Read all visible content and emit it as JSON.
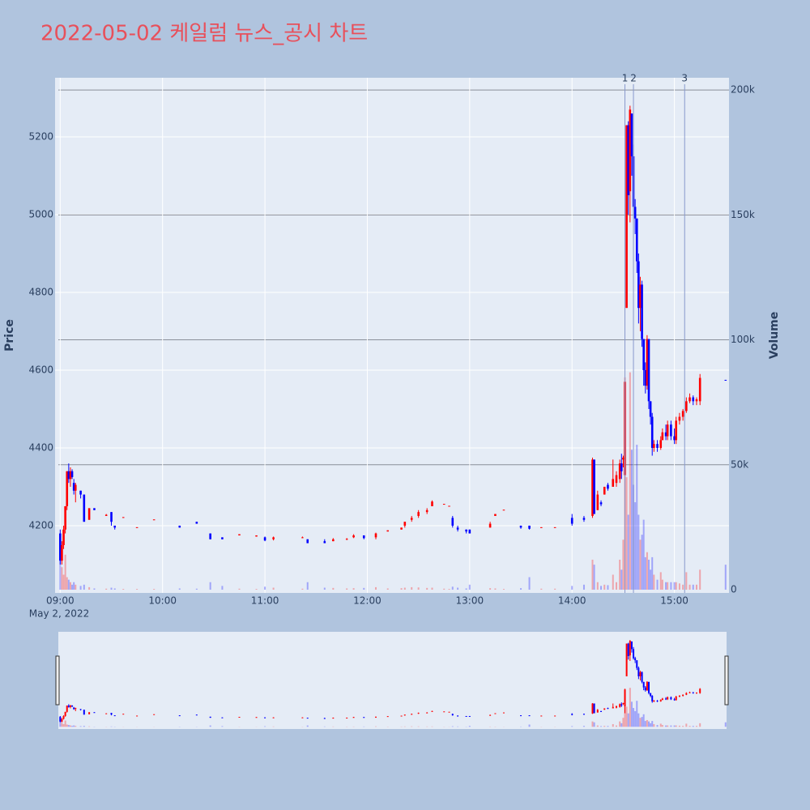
{
  "chart_data": {
    "type": "candlestick",
    "title": "2022-05-02 케일럼 뉴스_공시 차트",
    "y_title": "Price",
    "y2_title": "Volume",
    "x_date_label": "May 2, 2022",
    "increasing_color": "#ff0000",
    "decreasing_color": "#0000ff",
    "increasing_volume_color": "rgba(255,0,0,0.3)",
    "decreasing_volume_color": "rgba(0,0,255,0.3)",
    "xlim": [
      "2022-05-02 08:57",
      "2022-05-02 15:32"
    ],
    "xticks": [
      {
        "value": "2022-05-02 09:00",
        "label": "09:00"
      },
      {
        "value": "2022-05-02 10:00",
        "label": "10:00"
      },
      {
        "value": "2022-05-02 11:00",
        "label": "11:00"
      },
      {
        "value": "2022-05-02 12:00",
        "label": "12:00"
      },
      {
        "value": "2022-05-02 13:00",
        "label": "13:00"
      },
      {
        "value": "2022-05-02 14:00",
        "label": "14:00"
      },
      {
        "value": "2022-05-02 15:00",
        "label": "15:00"
      }
    ],
    "ylim": [
      4027,
      5352
    ],
    "yticks": [
      4200,
      4400,
      4600,
      4800,
      5000,
      5200
    ],
    "y2lim": [
      -1300,
      204900
    ],
    "y2ticks": [
      0,
      {
        "value": 50000,
        "label": "50k"
      },
      {
        "value": 100000,
        "label": "100k"
      },
      {
        "value": 150000,
        "label": "150k"
      },
      {
        "value": 200000,
        "label": "200k"
      }
    ],
    "annotations": [
      {
        "x": "2022-05-02 14:31",
        "label": "1"
      },
      {
        "x": "2022-05-02 14:36",
        "label": "2"
      },
      {
        "x": "2022-05-02 15:06",
        "label": "3"
      }
    ],
    "x": [
      "2022-05-02 09:00",
      "2022-05-02 09:01",
      "2022-05-02 09:02",
      "2022-05-02 09:03",
      "2022-05-02 09:04",
      "2022-05-02 09:05",
      "2022-05-02 09:06",
      "2022-05-02 09:07",
      "2022-05-02 09:08",
      "2022-05-02 09:09",
      "2022-05-02 09:12",
      "2022-05-02 09:14",
      "2022-05-02 09:17",
      "2022-05-02 09:20",
      "2022-05-02 09:27",
      "2022-05-02 09:30",
      "2022-05-02 09:32",
      "2022-05-02 09:37",
      "2022-05-02 09:45",
      "2022-05-02 09:55",
      "2022-05-02 10:10",
      "2022-05-02 10:20",
      "2022-05-02 10:28",
      "2022-05-02 10:35",
      "2022-05-02 10:45",
      "2022-05-02 10:55",
      "2022-05-02 11:00",
      "2022-05-02 11:05",
      "2022-05-02 11:22",
      "2022-05-02 11:25",
      "2022-05-02 11:35",
      "2022-05-02 11:40",
      "2022-05-02 11:48",
      "2022-05-02 11:52",
      "2022-05-02 11:58",
      "2022-05-02 12:05",
      "2022-05-02 12:12",
      "2022-05-02 12:20",
      "2022-05-02 12:22",
      "2022-05-02 12:26",
      "2022-05-02 12:30",
      "2022-05-02 12:35",
      "2022-05-02 12:38",
      "2022-05-02 12:45",
      "2022-05-02 12:48",
      "2022-05-02 12:50",
      "2022-05-02 12:53",
      "2022-05-02 12:58",
      "2022-05-02 13:00",
      "2022-05-02 13:12",
      "2022-05-02 13:15",
      "2022-05-02 13:20",
      "2022-05-02 13:30",
      "2022-05-02 13:35",
      "2022-05-02 13:42",
      "2022-05-02 13:50",
      "2022-05-02 14:00",
      "2022-05-02 14:07",
      "2022-05-02 14:12",
      "2022-05-02 14:13",
      "2022-05-02 14:15",
      "2022-05-02 14:17",
      "2022-05-02 14:19",
      "2022-05-02 14:21",
      "2022-05-02 14:24",
      "2022-05-02 14:26",
      "2022-05-02 14:28",
      "2022-05-02 14:29",
      "2022-05-02 14:30",
      "2022-05-02 14:31",
      "2022-05-02 14:32",
      "2022-05-02 14:33",
      "2022-05-02 14:34",
      "2022-05-02 14:35",
      "2022-05-02 14:36",
      "2022-05-02 14:37",
      "2022-05-02 14:38",
      "2022-05-02 14:39",
      "2022-05-02 14:40",
      "2022-05-02 14:41",
      "2022-05-02 14:42",
      "2022-05-02 14:43",
      "2022-05-02 14:44",
      "2022-05-02 14:45",
      "2022-05-02 14:46",
      "2022-05-02 14:47",
      "2022-05-02 14:48",
      "2022-05-02 14:50",
      "2022-05-02 14:52",
      "2022-05-02 14:53",
      "2022-05-02 14:55",
      "2022-05-02 14:56",
      "2022-05-02 14:58",
      "2022-05-02 15:00",
      "2022-05-02 15:01",
      "2022-05-02 15:03",
      "2022-05-02 15:05",
      "2022-05-02 15:07",
      "2022-05-02 15:09",
      "2022-05-02 15:11",
      "2022-05-02 15:13",
      "2022-05-02 15:15",
      "2022-05-02 15:30"
    ],
    "open": [
      4180,
      4110,
      4150,
      4190,
      4250,
      4340,
      4320,
      4340,
      4310,
      4290,
      4290,
      4280,
      4215,
      4245,
      4225,
      4235,
      4200,
      4220,
      4195,
      4215,
      4200,
      4210,
      4180,
      4170,
      4175,
      4172,
      4170,
      4165,
      4168,
      4165,
      4160,
      4160,
      4165,
      4170,
      4175,
      4170,
      4185,
      4190,
      4200,
      4215,
      4225,
      4235,
      4250,
      4255,
      4250,
      4220,
      4195,
      4190,
      4190,
      4195,
      4225,
      4240,
      4200,
      4200,
      4195,
      4195,
      4220,
      4220,
      4225,
      4370,
      4240,
      4260,
      4280,
      4305,
      4300,
      4310,
      4320,
      4360,
      4370,
      4330,
      4760,
      5230,
      5060,
      5260,
      5150,
      5020,
      4990,
      4880,
      4760,
      4820,
      4680,
      4600,
      4560,
      4680,
      4520,
      4480,
      4400,
      4410,
      4400,
      4420,
      4440,
      4430,
      4460,
      4430,
      4420,
      4470,
      4480,
      4495,
      4520,
      4530,
      4520,
      4520,
      4575
    ],
    "high": [
      4190,
      4160,
      4200,
      4250,
      4340,
      4360,
      4350,
      4345,
      4320,
      4310,
      4290,
      4280,
      4245,
      4245,
      4230,
      4235,
      4200,
      4222,
      4196,
      4216,
      4200,
      4210,
      4180,
      4170,
      4178,
      4175,
      4172,
      4172,
      4172,
      4165,
      4165,
      4168,
      4168,
      4178,
      4175,
      4182,
      4188,
      4195,
      4210,
      4225,
      4240,
      4245,
      4265,
      4256,
      4251,
      4225,
      4200,
      4190,
      4190,
      4210,
      4230,
      4241,
      4200,
      4200,
      4196,
      4196,
      4230,
      4225,
      4375,
      4370,
      4290,
      4265,
      4300,
      4310,
      4370,
      4340,
      4370,
      4385,
      4380,
      4580,
      5230,
      5240,
      5280,
      5260,
      5180,
      5040,
      4990,
      4900,
      4840,
      4830,
      4680,
      4620,
      4690,
      4680,
      4520,
      4490,
      4420,
      4420,
      4430,
      4450,
      4460,
      4470,
      4470,
      4450,
      4480,
      4490,
      4500,
      4530,
      4540,
      4535,
      4530,
      4590,
      4575
    ],
    "low": [
      4100,
      4100,
      4140,
      4180,
      4240,
      4310,
      4300,
      4320,
      4280,
      4260,
      4270,
      4210,
      4215,
      4240,
      4225,
      4200,
      4190,
      4220,
      4195,
      4215,
      4195,
      4205,
      4165,
      4165,
      4175,
      4172,
      4160,
      4162,
      4168,
      4155,
      4155,
      4160,
      4163,
      4168,
      4165,
      4165,
      4185,
      4190,
      4195,
      4210,
      4220,
      4230,
      4250,
      4255,
      4250,
      4195,
      4185,
      4180,
      4180,
      4195,
      4225,
      4240,
      4192,
      4190,
      4195,
      4195,
      4200,
      4210,
      4220,
      4230,
      4240,
      4250,
      4280,
      4290,
      4300,
      4300,
      4310,
      4320,
      4350,
      4230,
      4760,
      5000,
      4980,
      5100,
      5000,
      4950,
      4850,
      4720,
      4700,
      4660,
      4560,
      4540,
      4550,
      4500,
      4460,
      4380,
      4390,
      4390,
      4395,
      4420,
      4420,
      4420,
      4420,
      4410,
      4410,
      4460,
      4470,
      4490,
      4515,
      4510,
      4510,
      4510,
      4573
    ],
    "close": [
      4110,
      4150,
      4190,
      4250,
      4340,
      4320,
      4340,
      4325,
      4290,
      4305,
      4280,
      4210,
      4245,
      4240,
      4228,
      4210,
      4195,
      4222,
      4196,
      4216,
      4195,
      4205,
      4165,
      4165,
      4178,
      4175,
      4162,
      4170,
      4170,
      4155,
      4155,
      4165,
      4166,
      4175,
      4168,
      4180,
      4188,
      4195,
      4210,
      4220,
      4235,
      4240,
      4262,
      4256,
      4251,
      4200,
      4190,
      4185,
      4180,
      4205,
      4230,
      4241,
      4195,
      4192,
      4196,
      4196,
      4205,
      4215,
      4370,
      4230,
      4280,
      4255,
      4300,
      4295,
      4320,
      4330,
      4360,
      4340,
      4375,
      4570,
      5230,
      5050,
      5270,
      5150,
      5020,
      4990,
      4880,
      4760,
      4820,
      4680,
      4600,
      4560,
      4680,
      4520,
      4480,
      4400,
      4410,
      4400,
      4420,
      4440,
      4430,
      4460,
      4430,
      4420,
      4470,
      4480,
      4495,
      4520,
      4530,
      4520,
      4525,
      4580,
      4573
    ],
    "volume": [
      20000,
      9000,
      6000,
      14000,
      5000,
      4000,
      3000,
      2000,
      3000,
      2000,
      1500,
      2000,
      1000,
      500,
      400,
      800,
      500,
      300,
      300,
      300,
      500,
      400,
      3000,
      1500,
      400,
      300,
      1200,
      800,
      400,
      3000,
      800,
      700,
      500,
      600,
      700,
      1000,
      500,
      600,
      800,
      1000,
      900,
      700,
      800,
      400,
      300,
      1200,
      800,
      500,
      2000,
      600,
      500,
      300,
      600,
      5000,
      400,
      400,
      1500,
      2000,
      12000,
      10000,
      3000,
      1500,
      2000,
      1800,
      6000,
      3000,
      12000,
      8000,
      20000,
      85000,
      45000,
      30000,
      87000,
      56000,
      42000,
      35000,
      58000,
      30000,
      20000,
      22000,
      28000,
      13000,
      15000,
      12000,
      8000,
      13000,
      6000,
      4000,
      7000,
      4000,
      3000,
      3000,
      3000,
      3000,
      3000,
      2500,
      2000,
      7000,
      2000,
      2000,
      2000,
      8000,
      10000
    ]
  }
}
